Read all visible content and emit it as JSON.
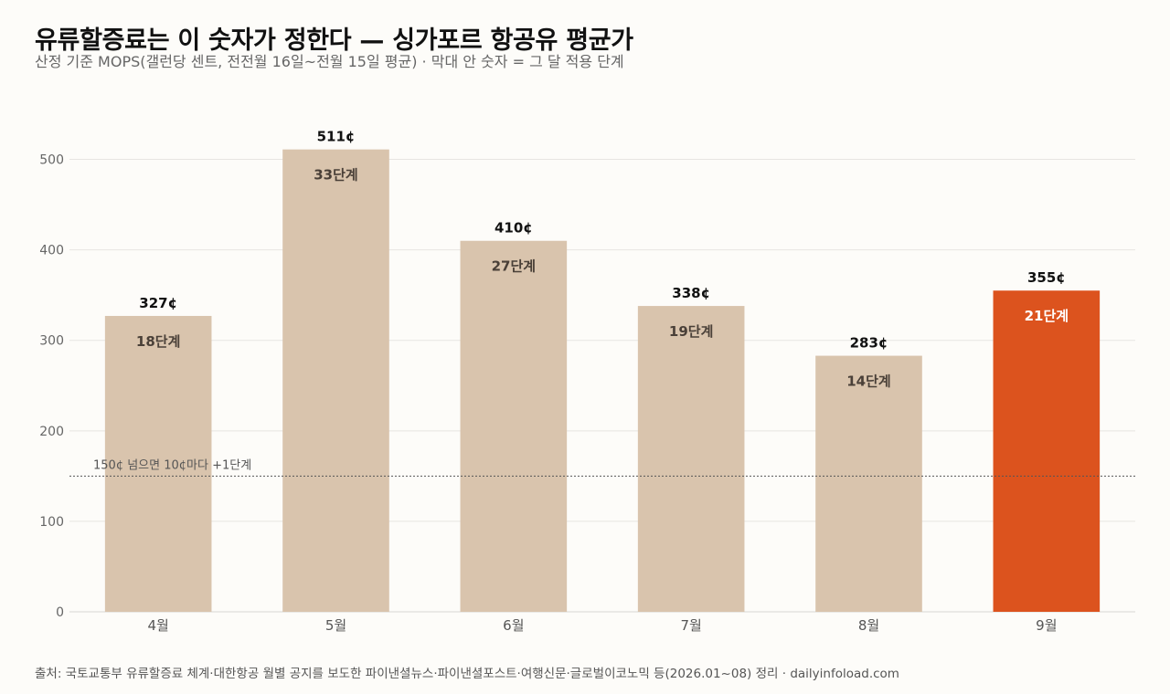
{
  "chart_data": {
    "type": "bar",
    "title": "유류할증료는 이 숫자가 정한다 — 싱가포르 항공유 평균가",
    "subtitle": "산정 기준 MOPS(갤런당 센트, 전전월 16일~전월 15일 평균) · 막대 안 숫자 = 그 달 적용 단계",
    "source": "출처: 국토교통부 유류할증료 체계·대한항공 월별 공지를 보도한 파이낸셜뉴스·파이낸셜포스트·여행신문·글로벌이코노믹 등(2026.01~08) 정리 · dailyinfoload.com",
    "categories": [
      "4월",
      "5월",
      "6월",
      "7월",
      "8월",
      "9월"
    ],
    "values": [
      327,
      511,
      410,
      338,
      283,
      355
    ],
    "value_labels": [
      "327¢",
      "511¢",
      "410¢",
      "338¢",
      "283¢",
      "355¢"
    ],
    "stage_labels": [
      "18단계",
      "33단계",
      "27단계",
      "19단계",
      "14단계",
      "21단계"
    ],
    "highlight_index": 5,
    "ylim": [
      0,
      550
    ],
    "yticks": [
      0,
      100,
      200,
      300,
      400,
      500
    ],
    "grid": true,
    "reference_line": {
      "value": 150,
      "label": "150¢ 넘으면 10¢마다 +1단계"
    },
    "colors": {
      "bar": "#d9c4ad",
      "highlight": "#dc531e",
      "stage_text": "#4a4038",
      "stage_text_highlight": "#ffffff",
      "grid": "#e7e5e2",
      "reference_line": "#555555"
    }
  }
}
